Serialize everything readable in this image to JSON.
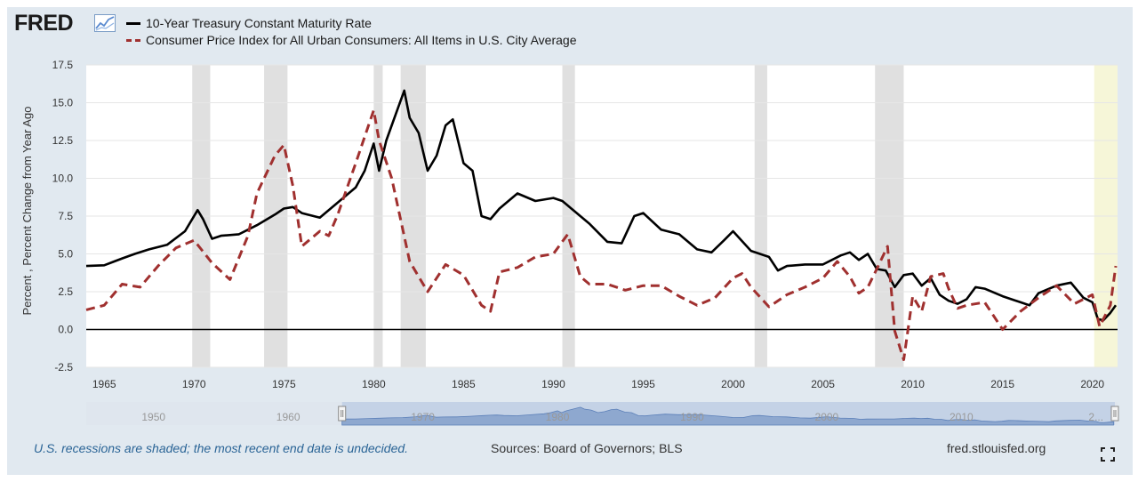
{
  "logo": {
    "text": "FRED",
    "icon": "fred-chart-icon"
  },
  "footer": {
    "note": "U.S. recessions are shaded; the most recent end date is undecided.",
    "sources": "Sources: Board of Governors; BLS",
    "url": "fred.stlouisfed.org",
    "fullscreen_icon": "expand-icon"
  },
  "colors": {
    "treasury": "#000000",
    "cpi": "#a0302f",
    "recession": "#e0e0e0",
    "undecided": "#f6f6d8",
    "navigator": "#8ea8cf"
  },
  "chart_data": {
    "type": "line",
    "title": "",
    "xlabel": "",
    "ylabel": "Percent , Percent Change from Year Ago",
    "xlim": [
      1964.0,
      2021.4
    ],
    "ylim": [
      -2.5,
      17.5
    ],
    "yticks": [
      "17.5",
      "15.0",
      "12.5",
      "10.0",
      "7.5",
      "5.0",
      "2.5",
      "0.0",
      "-2.5"
    ],
    "xticks": [
      "1965",
      "1970",
      "1975",
      "1980",
      "1985",
      "1990",
      "1995",
      "2000",
      "2005",
      "2010",
      "2015",
      "2020"
    ],
    "grid": true,
    "legend_position": "top-left",
    "recessions": [
      [
        1969.9,
        1970.9
      ],
      [
        1973.9,
        1975.2
      ],
      [
        1980.0,
        1980.5
      ],
      [
        1981.5,
        1982.9
      ],
      [
        1990.5,
        1991.2
      ],
      [
        2001.2,
        2001.9
      ],
      [
        2007.9,
        2009.5
      ],
      [
        2020.1,
        2021.4
      ]
    ],
    "navigator_ticks": [
      "1950",
      "1960",
      "1970",
      "1980",
      "1990",
      "2000",
      "2010",
      "2..."
    ],
    "series": [
      {
        "name": "10-Year Treasury Constant Maturity Rate",
        "style": "solid",
        "x": [
          1964.0,
          1965.0,
          1966.0,
          1966.7,
          1967.5,
          1968.5,
          1969.5,
          1970.2,
          1970.5,
          1971.0,
          1971.5,
          1972.5,
          1973.5,
          1974.5,
          1975.0,
          1975.5,
          1976.0,
          1977.0,
          1978.0,
          1979.0,
          1979.5,
          1980.0,
          1980.3,
          1980.7,
          1981.0,
          1981.7,
          1982.0,
          1982.5,
          1983.0,
          1983.5,
          1984.0,
          1984.4,
          1985.0,
          1985.5,
          1986.0,
          1986.5,
          1987.0,
          1987.5,
          1988.0,
          1989.0,
          1990.0,
          1990.5,
          1991.0,
          1992.0,
          1993.0,
          1993.8,
          1994.5,
          1995.0,
          1996.0,
          1997.0,
          1998.0,
          1998.8,
          1999.5,
          2000.0,
          2001.0,
          2002.0,
          2002.5,
          2003.0,
          2004.0,
          2005.0,
          2006.0,
          2006.5,
          2007.0,
          2007.5,
          2008.0,
          2008.5,
          2009.0,
          2009.5,
          2010.0,
          2010.5,
          2011.0,
          2011.5,
          2012.0,
          2012.5,
          2013.0,
          2013.5,
          2014.0,
          2015.0,
          2016.0,
          2016.5,
          2017.0,
          2018.0,
          2018.8,
          2019.5,
          2020.0,
          2020.3,
          2020.6,
          2021.0,
          2021.3
        ],
        "y": [
          4.2,
          4.25,
          4.7,
          5.0,
          5.3,
          5.6,
          6.5,
          7.9,
          7.3,
          6.0,
          6.2,
          6.3,
          6.9,
          7.6,
          8.0,
          8.1,
          7.7,
          7.4,
          8.4,
          9.4,
          10.5,
          12.3,
          10.5,
          12.5,
          13.5,
          15.8,
          14.0,
          13.0,
          10.5,
          11.5,
          13.5,
          13.9,
          11.0,
          10.5,
          7.5,
          7.3,
          8.0,
          8.5,
          9.0,
          8.5,
          8.7,
          8.5,
          8.0,
          7.0,
          5.8,
          5.7,
          7.5,
          7.7,
          6.6,
          6.3,
          5.3,
          5.1,
          5.9,
          6.5,
          5.2,
          4.8,
          3.9,
          4.2,
          4.3,
          4.3,
          4.9,
          5.1,
          4.6,
          5.0,
          4.0,
          3.9,
          2.8,
          3.6,
          3.7,
          2.9,
          3.4,
          2.3,
          1.9,
          1.7,
          2.0,
          2.8,
          2.7,
          2.2,
          1.8,
          1.6,
          2.4,
          2.9,
          3.1,
          2.1,
          1.8,
          0.7,
          0.6,
          1.1,
          1.6
        ]
      },
      {
        "name": "Consumer Price Index for All Urban Consumers: All Items in U.S. City Average",
        "style": "dashed",
        "x": [
          1964.0,
          1965.0,
          1966.0,
          1967.0,
          1968.0,
          1969.0,
          1970.0,
          1971.0,
          1972.0,
          1973.0,
          1973.5,
          1974.5,
          1975.0,
          1975.5,
          1976.0,
          1977.0,
          1977.5,
          1978.0,
          1979.0,
          1980.0,
          1980.3,
          1981.0,
          1982.0,
          1983.0,
          1984.0,
          1985.0,
          1986.0,
          1986.5,
          1987.0,
          1988.0,
          1989.0,
          1990.0,
          1990.8,
          1991.5,
          1992.0,
          1993.0,
          1994.0,
          1995.0,
          1996.0,
          1997.0,
          1998.0,
          1999.0,
          2000.0,
          2000.5,
          2001.0,
          2002.0,
          2003.0,
          2004.0,
          2005.0,
          2005.8,
          2006.5,
          2007.0,
          2007.5,
          2008.0,
          2008.6,
          2009.0,
          2009.5,
          2010.0,
          2010.5,
          2011.0,
          2011.7,
          2012.0,
          2012.5,
          2013.0,
          2014.0,
          2015.0,
          2016.0,
          2017.0,
          2018.0,
          2019.0,
          2020.0,
          2020.4,
          2021.0,
          2021.3
        ],
        "y": [
          1.3,
          1.6,
          3.0,
          2.8,
          4.2,
          5.4,
          5.9,
          4.4,
          3.3,
          6.2,
          9.0,
          11.5,
          12.2,
          9.5,
          5.5,
          6.5,
          6.2,
          7.6,
          11.0,
          14.5,
          12.5,
          10.0,
          4.5,
          2.5,
          4.3,
          3.6,
          1.6,
          1.2,
          3.8,
          4.1,
          4.8,
          5.0,
          6.3,
          3.5,
          3.0,
          3.0,
          2.6,
          2.9,
          2.9,
          2.2,
          1.6,
          2.1,
          3.4,
          3.7,
          2.8,
          1.5,
          2.3,
          2.8,
          3.4,
          4.5,
          3.5,
          2.4,
          2.8,
          4.0,
          5.5,
          -0.1,
          -2.0,
          2.2,
          1.2,
          3.5,
          3.7,
          2.7,
          1.4,
          1.6,
          1.8,
          0.0,
          1.2,
          2.1,
          2.9,
          1.7,
          2.3,
          0.2,
          1.6,
          4.2
        ]
      }
    ]
  }
}
